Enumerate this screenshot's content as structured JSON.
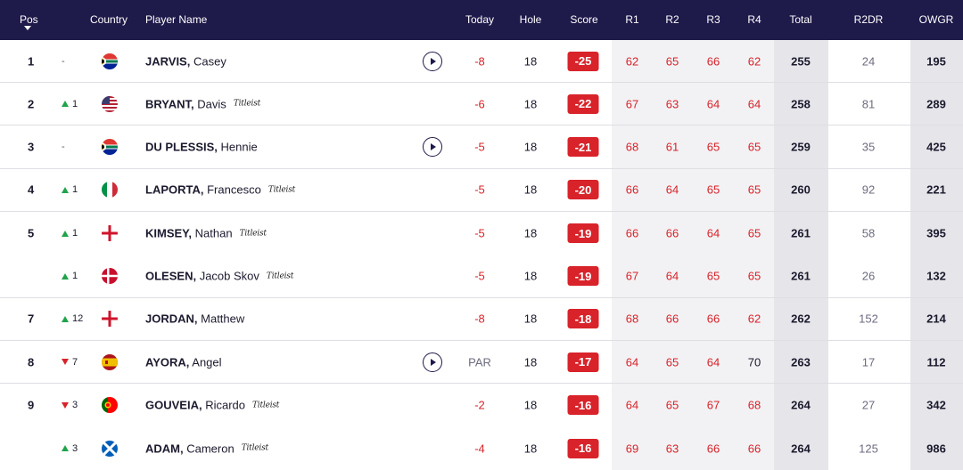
{
  "header": {
    "pos": "Pos",
    "country": "Country",
    "player": "Player Name",
    "today": "Today",
    "hole": "Hole",
    "score": "Score",
    "r1": "R1",
    "r2": "R2",
    "r3": "R3",
    "r4": "R4",
    "total": "Total",
    "r2dr": "R2DR",
    "owgr": "OWGR"
  },
  "colors": {
    "header_bg": "#1e1a4a",
    "under_par": "#d8232a",
    "up": "#20a34a",
    "down": "#d8232a"
  },
  "rows": [
    {
      "pos": "1",
      "move_dir": "none",
      "move": "-",
      "country": "south-africa",
      "last": "JARVIS,",
      "first": "Casey",
      "sponsor": "",
      "play": true,
      "today": "-8",
      "today_color": "red",
      "hole": "18",
      "score": "-25",
      "r1": "62",
      "r2": "65",
      "r3": "66",
      "r4": "62",
      "r4_color": "red",
      "total": "255",
      "r2dr": "24",
      "owgr": "195"
    },
    {
      "pos": "2",
      "move_dir": "up",
      "move": "1",
      "country": "usa",
      "last": "BRYANT,",
      "first": "Davis",
      "sponsor": "Titleist",
      "play": false,
      "today": "-6",
      "today_color": "red",
      "hole": "18",
      "score": "-22",
      "r1": "67",
      "r2": "63",
      "r3": "64",
      "r4": "64",
      "r4_color": "red",
      "total": "258",
      "r2dr": "81",
      "owgr": "289"
    },
    {
      "pos": "3",
      "move_dir": "none",
      "move": "-",
      "country": "south-africa",
      "last": "DU PLESSIS,",
      "first": "Hennie",
      "sponsor": "",
      "play": true,
      "today": "-5",
      "today_color": "red",
      "hole": "18",
      "score": "-21",
      "r1": "68",
      "r2": "61",
      "r3": "65",
      "r4": "65",
      "r4_color": "red",
      "total": "259",
      "r2dr": "35",
      "owgr": "425"
    },
    {
      "pos": "4",
      "move_dir": "up",
      "move": "1",
      "country": "italy",
      "last": "LAPORTA,",
      "first": "Francesco",
      "sponsor": "Titleist",
      "play": false,
      "today": "-5",
      "today_color": "red",
      "hole": "18",
      "score": "-20",
      "r1": "66",
      "r2": "64",
      "r3": "65",
      "r4": "65",
      "r4_color": "red",
      "total": "260",
      "r2dr": "92",
      "owgr": "221"
    },
    {
      "pos": "5",
      "move_dir": "up",
      "move": "1",
      "country": "england",
      "last": "KIMSEY,",
      "first": "Nathan",
      "sponsor": "Titleist",
      "play": false,
      "today": "-5",
      "today_color": "red",
      "hole": "18",
      "score": "-19",
      "r1": "66",
      "r2": "66",
      "r3": "64",
      "r4": "65",
      "r4_color": "red",
      "total": "261",
      "r2dr": "58",
      "owgr": "395"
    },
    {
      "pos": "",
      "move_dir": "up",
      "move": "1",
      "country": "denmark",
      "last": "OLESEN,",
      "first": "Jacob Skov",
      "sponsor": "Titleist",
      "play": false,
      "today": "-5",
      "today_color": "red",
      "hole": "18",
      "score": "-19",
      "r1": "67",
      "r2": "64",
      "r3": "65",
      "r4": "65",
      "r4_color": "red",
      "total": "261",
      "r2dr": "26",
      "owgr": "132"
    },
    {
      "pos": "7",
      "move_dir": "up",
      "move": "12",
      "country": "england",
      "last": "JORDAN,",
      "first": "Matthew",
      "sponsor": "",
      "play": false,
      "today": "-8",
      "today_color": "red",
      "hole": "18",
      "score": "-18",
      "r1": "68",
      "r2": "66",
      "r3": "66",
      "r4": "62",
      "r4_color": "red",
      "total": "262",
      "r2dr": "152",
      "owgr": "214"
    },
    {
      "pos": "8",
      "move_dir": "down",
      "move": "7",
      "country": "spain",
      "last": "AYORA,",
      "first": "Angel",
      "sponsor": "",
      "play": true,
      "today": "PAR",
      "today_color": "grey",
      "hole": "18",
      "score": "-17",
      "r1": "64",
      "r2": "65",
      "r3": "64",
      "r4": "70",
      "r4_color": "black",
      "total": "263",
      "r2dr": "17",
      "owgr": "112"
    },
    {
      "pos": "9",
      "move_dir": "down",
      "move": "3",
      "country": "portugal",
      "last": "GOUVEIA,",
      "first": "Ricardo",
      "sponsor": "Titleist",
      "play": false,
      "today": "-2",
      "today_color": "red",
      "hole": "18",
      "score": "-16",
      "r1": "64",
      "r2": "65",
      "r3": "67",
      "r4": "68",
      "r4_color": "red",
      "total": "264",
      "r2dr": "27",
      "owgr": "342"
    },
    {
      "pos": "",
      "move_dir": "up",
      "move": "3",
      "country": "scotland",
      "last": "ADAM,",
      "first": "Cameron",
      "sponsor": "Titleist",
      "play": false,
      "today": "-4",
      "today_color": "red",
      "hole": "18",
      "score": "-16",
      "r1": "69",
      "r2": "63",
      "r3": "66",
      "r4": "66",
      "r4_color": "red",
      "total": "264",
      "r2dr": "125",
      "owgr": "986"
    }
  ]
}
